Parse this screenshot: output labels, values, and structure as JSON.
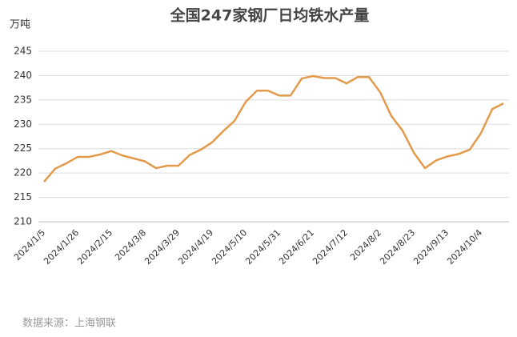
{
  "chart_data": {
    "type": "line",
    "title": "全国247家钢厂日均铁水产量",
    "y_unit_label": "万吨",
    "source": "数据来源：上海钢联",
    "categories": [
      "2024/1/5",
      null,
      null,
      "2024/1/26",
      null,
      null,
      "2024/2/15",
      null,
      null,
      "2024/3/8",
      null,
      null,
      "2024/3/29",
      null,
      null,
      "2024/4/19",
      null,
      null,
      "2024/5/10",
      null,
      null,
      "2024/5/31",
      null,
      null,
      "2024/6/21",
      null,
      null,
      "2024/7/12",
      null,
      null,
      "2024/8/2",
      null,
      null,
      "2024/8/23",
      null,
      null,
      "2024/9/13",
      null,
      null,
      "2024/10/4",
      null,
      null
    ],
    "values": [
      218.2,
      220.9,
      222,
      223.3,
      223.3,
      223.8,
      224.5,
      223.6,
      223,
      222.4,
      221,
      221.5,
      221.5,
      223.7,
      224.8,
      226.3,
      228.6,
      230.7,
      234.6,
      236.9,
      236.9,
      235.9,
      235.9,
      239.4,
      239.9,
      239.5,
      239.5,
      238.4,
      239.7,
      239.7,
      236.6,
      231.7,
      228.7,
      224.2,
      221,
      222.6,
      223.4,
      223.9,
      224.8,
      228.2,
      233.1,
      234.3
    ],
    "color": "#e39b4b",
    "ylim": [
      210,
      245
    ],
    "yticks": [
      210,
      215,
      220,
      225,
      230,
      235,
      240,
      245
    ],
    "grid": true
  }
}
